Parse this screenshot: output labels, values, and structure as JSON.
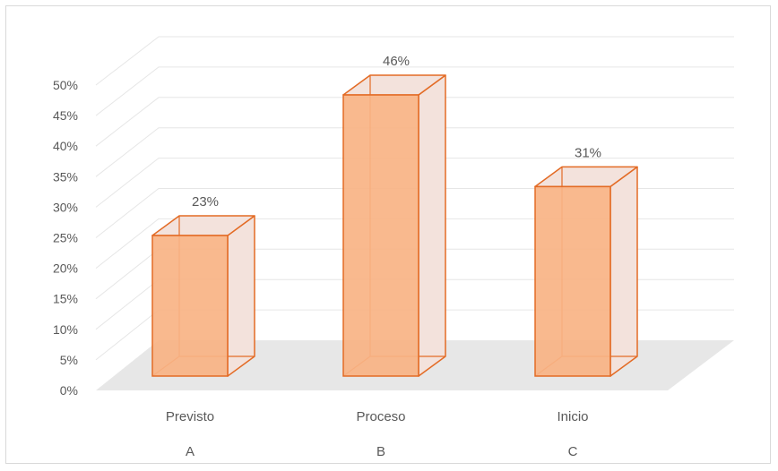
{
  "chart_data": {
    "type": "bar",
    "categories": [
      "Previsto",
      "Proceso",
      "Inicio"
    ],
    "category_letters": [
      "A",
      "B",
      "C"
    ],
    "values": [
      0.23,
      0.46,
      0.31
    ],
    "data_labels": [
      "23%",
      "46%",
      "31%"
    ],
    "y_ticks": [
      "0%",
      "5%",
      "10%",
      "15%",
      "20%",
      "25%",
      "30%",
      "35%",
      "40%",
      "45%",
      "50%"
    ],
    "ylim": [
      0,
      0.5
    ],
    "grid": true,
    "legend": "none",
    "style": "3d-column",
    "colors": {
      "bar_fill": "#f8b384",
      "bar_side": "#f3e2dc",
      "bar_edge": "#e36b25",
      "floor": "#e7e7e7",
      "grid": "#e6e6e6",
      "text": "#595959"
    }
  }
}
